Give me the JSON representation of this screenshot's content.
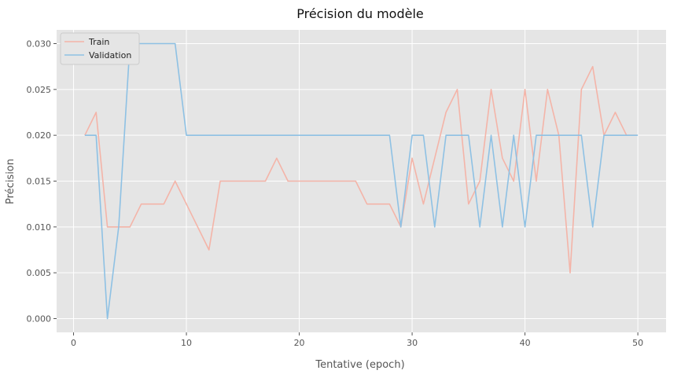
{
  "chart_data": {
    "type": "line",
    "title": "Précision du modèle",
    "xlabel": "Tentative (epoch)",
    "ylabel": "Précision",
    "xlim": [
      -1.5,
      52.5
    ],
    "ylim": [
      -0.0015,
      0.0315
    ],
    "xticks": [
      0,
      10,
      20,
      30,
      40,
      50
    ],
    "yticks": [
      0.0,
      0.005,
      0.01,
      0.015,
      0.02,
      0.025,
      0.03
    ],
    "xtick_labels": [
      "0",
      "10",
      "20",
      "30",
      "40",
      "50"
    ],
    "ytick_labels": [
      "0.000",
      "0.005",
      "0.010",
      "0.015",
      "0.020",
      "0.025",
      "0.030"
    ],
    "grid": true,
    "legend_position": "top-left",
    "x": [
      1,
      2,
      3,
      4,
      5,
      6,
      7,
      8,
      9,
      10,
      11,
      12,
      13,
      14,
      15,
      16,
      17,
      18,
      19,
      20,
      21,
      22,
      23,
      24,
      25,
      26,
      27,
      28,
      29,
      30,
      31,
      32,
      33,
      34,
      35,
      36,
      37,
      38,
      39,
      40,
      41,
      42,
      43,
      44,
      45,
      46,
      47,
      48,
      49,
      50
    ],
    "series": [
      {
        "name": "Train",
        "color": "#f4b4a8",
        "values": [
          0.02,
          0.0225,
          0.01,
          0.01,
          0.01,
          0.0125,
          0.0125,
          0.0125,
          0.015,
          0.0125,
          0.01,
          0.0075,
          0.015,
          0.015,
          0.015,
          0.015,
          0.015,
          0.0175,
          0.015,
          0.015,
          0.015,
          0.015,
          0.015,
          0.015,
          0.015,
          0.0125,
          0.0125,
          0.0125,
          0.01,
          0.0175,
          0.0125,
          0.0175,
          0.0225,
          0.025,
          0.0125,
          0.015,
          0.025,
          0.0175,
          0.015,
          0.025,
          0.015,
          0.025,
          0.02,
          0.005,
          0.025,
          0.0275,
          0.02,
          0.0225,
          0.02,
          0.02
        ]
      },
      {
        "name": "Validation",
        "color": "#8ec1e4",
        "values": [
          0.02,
          0.02,
          0.0,
          0.01,
          0.03,
          0.03,
          0.03,
          0.03,
          0.03,
          0.02,
          0.02,
          0.02,
          0.02,
          0.02,
          0.02,
          0.02,
          0.02,
          0.02,
          0.02,
          0.02,
          0.02,
          0.02,
          0.02,
          0.02,
          0.02,
          0.02,
          0.02,
          0.02,
          0.01,
          0.02,
          0.02,
          0.01,
          0.02,
          0.02,
          0.02,
          0.01,
          0.02,
          0.01,
          0.02,
          0.01,
          0.02,
          0.02,
          0.02,
          0.02,
          0.02,
          0.01,
          0.02,
          0.02,
          0.02,
          0.02
        ]
      }
    ]
  }
}
